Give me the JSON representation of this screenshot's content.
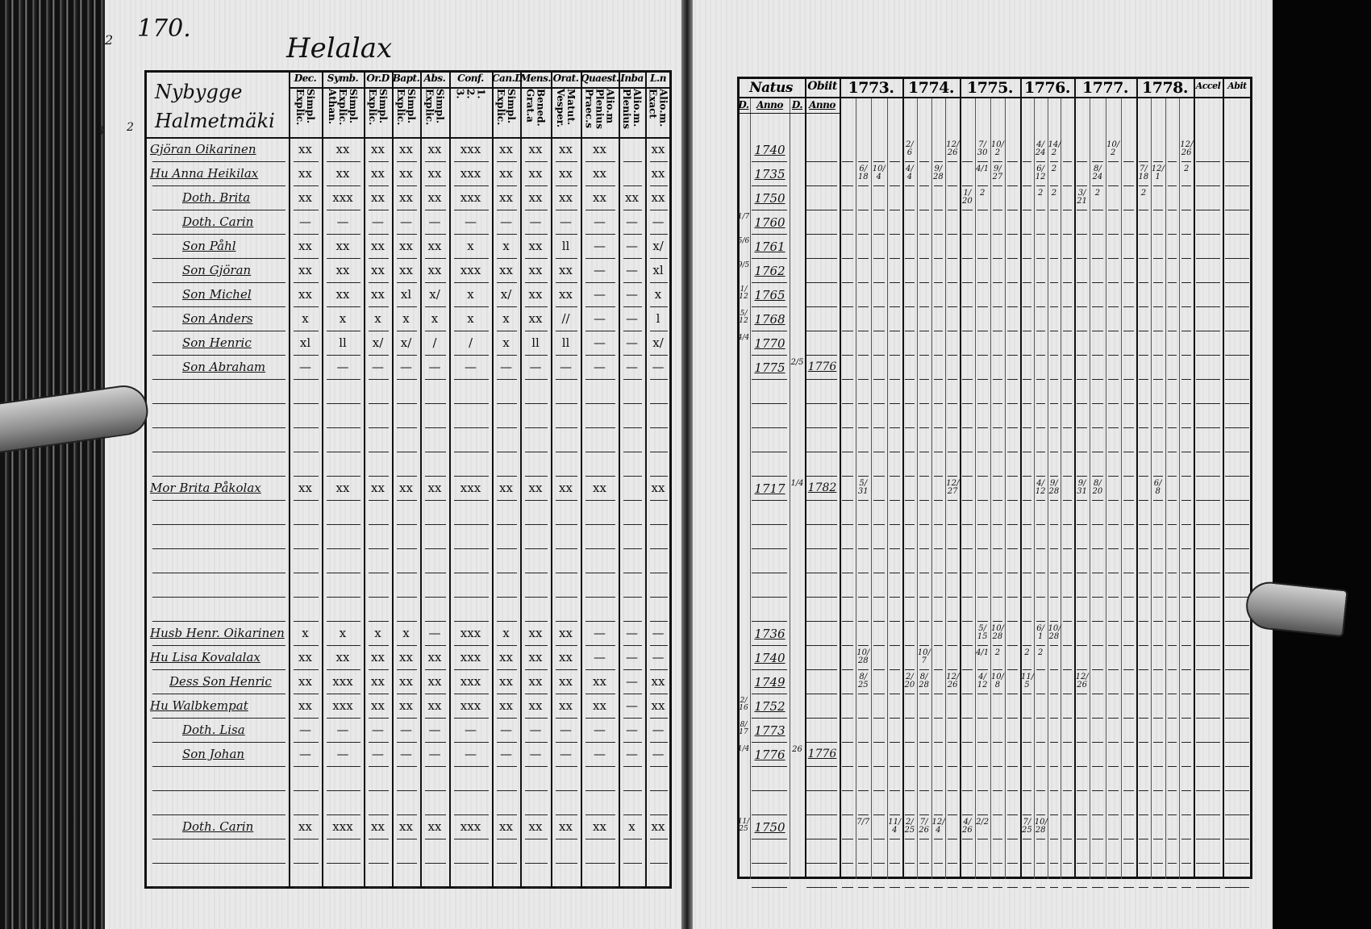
{
  "left_page": {
    "page_number": "170.",
    "village": "Helalax",
    "margin_marks": [
      "2",
      "3",
      "2"
    ],
    "homestead": {
      "line1": "Nybygge",
      "line2": "Halmetmäki"
    },
    "columns": [
      {
        "top": "Dec.",
        "sub": [
          "Explic.",
          "Simpl."
        ]
      },
      {
        "top": "Symb.",
        "sub": [
          "Athan.",
          "Explic.",
          "Simpl."
        ]
      },
      {
        "top": "Or.D",
        "sub": [
          "Explic.",
          "Simpl."
        ]
      },
      {
        "top": "Bapt.",
        "sub": [
          "Explic.",
          "Simpl."
        ]
      },
      {
        "top": "Abs.",
        "sub": [
          "Explic.",
          "Simpl."
        ]
      },
      {
        "top": "Conf.",
        "sub": [
          "3.",
          "2.",
          "1."
        ]
      },
      {
        "top": "Can.D",
        "sub": [
          "Explic.",
          "Simpl."
        ]
      },
      {
        "top": "Mens.",
        "sub": [
          "Grat.a",
          "Bened."
        ]
      },
      {
        "top": "Orat.",
        "sub": [
          "Vesper.",
          "Matut."
        ]
      },
      {
        "top": "Quaest.",
        "sub": [
          "Praec.s",
          "Plenius",
          "Alio.m"
        ]
      },
      {
        "top": "Inba",
        "sub": [
          "Plenius",
          "Alio.m."
        ]
      },
      {
        "top": "L.n",
        "sub": [
          "Exact",
          "Alio.m."
        ]
      }
    ]
  },
  "right_page": {
    "headers": {
      "natus": "Natus",
      "obiit": "Obiit",
      "accel": "Accel",
      "abit": "Abit",
      "sub": [
        "D.",
        "Anno",
        "D.",
        "Anno"
      ]
    },
    "years": [
      "1773.",
      "1774.",
      "1775.",
      "1776.",
      "1777.",
      "1778."
    ]
  },
  "persons": [
    {
      "name": "Gjöran Oikarinen",
      "marks": [
        "xx",
        "xx",
        "xx",
        "xx",
        "xx",
        "xxx",
        "xx",
        "xx",
        "xx",
        "xx",
        "",
        "xx"
      ],
      "natus_d": "",
      "natus_anno": "1740",
      "obiit_d": "",
      "obiit_anno": "",
      "years": [
        [
          "",
          "",
          "",
          ""
        ],
        [
          "2/6",
          "",
          "",
          "12/26"
        ],
        [
          "",
          "7/30",
          "10/2",
          ""
        ],
        [
          "",
          "4/24",
          "14/2",
          ""
        ],
        [
          "",
          "",
          "10/2",
          ""
        ],
        [
          "",
          "",
          "",
          "12/26"
        ]
      ]
    },
    {
      "name": "Hu Anna Heikilax",
      "marks": [
        "xx",
        "xx",
        "xx",
        "xx",
        "xx",
        "xxx",
        "xx",
        "xx",
        "xx",
        "xx",
        "",
        "xx"
      ],
      "natus_d": "",
      "natus_anno": "1735",
      "obiit_d": "",
      "obiit_anno": "",
      "years": [
        [
          "",
          "6/18",
          "10/4",
          ""
        ],
        [
          "4/4",
          "",
          "9/28",
          ""
        ],
        [
          "",
          "4/1",
          "9/27",
          ""
        ],
        [
          "",
          "6/12",
          "2",
          ""
        ],
        [
          "",
          "8/24",
          "",
          ""
        ],
        [
          "7/18",
          "12/1",
          "",
          "2"
        ]
      ]
    },
    {
      "name": "Doth. Brita",
      "marks": [
        "xx",
        "xxx",
        "xx",
        "xx",
        "xx",
        "xxx",
        "xx",
        "xx",
        "xx",
        "xx",
        "xx",
        "xx"
      ],
      "natus_d": "",
      "natus_anno": "1750",
      "obiit_d": "",
      "obiit_anno": "",
      "years": [
        [
          "",
          "",
          "",
          ""
        ],
        [
          "",
          "",
          "",
          ""
        ],
        [
          "1/20",
          "2",
          "",
          ""
        ],
        [
          "",
          "2",
          "2",
          ""
        ],
        [
          "3/21",
          "2",
          "",
          ""
        ],
        [
          "2",
          "",
          "",
          ""
        ]
      ]
    },
    {
      "name": "Doth. Carin",
      "marks": [
        "—",
        "—",
        "—",
        "—",
        "—",
        "—",
        "—",
        "—",
        "—",
        "—",
        "—",
        "—"
      ],
      "natus_d": "1/7",
      "natus_anno": "1760",
      "obiit_d": "",
      "obiit_anno": "",
      "years": []
    },
    {
      "name": "Son Påhl",
      "marks": [
        "xx",
        "xx",
        "xx",
        "xx",
        "xx",
        "x",
        "x",
        "xx",
        "ll",
        "—",
        "—",
        "x/"
      ],
      "natus_d": "5/6",
      "natus_anno": "1761",
      "obiit_d": "",
      "obiit_anno": "",
      "years": []
    },
    {
      "name": "Son Gjöran",
      "marks": [
        "xx",
        "xx",
        "xx",
        "xx",
        "xx",
        "xxx",
        "xx",
        "xx",
        "xx",
        "—",
        "—",
        "xl"
      ],
      "natus_d": "9/5",
      "natus_anno": "1762",
      "obiit_d": "",
      "obiit_anno": "",
      "years": []
    },
    {
      "name": "Son Michel",
      "marks": [
        "xx",
        "xx",
        "xx",
        "xl",
        "x/",
        "x",
        "x/",
        "xx",
        "xx",
        "—",
        "—",
        "x"
      ],
      "natus_d": "1/12",
      "natus_anno": "1765",
      "obiit_d": "",
      "obiit_anno": "",
      "years": []
    },
    {
      "name": "Son Anders",
      "marks": [
        "x",
        "x",
        "x",
        "x",
        "x",
        "x",
        "x",
        "xx",
        "//",
        "—",
        "—",
        "l"
      ],
      "natus_d": "5/12",
      "natus_anno": "1768",
      "obiit_d": "",
      "obiit_anno": "",
      "years": []
    },
    {
      "name": "Son Henric",
      "marks": [
        "xl",
        "ll",
        "x/",
        "x/",
        "/",
        "/",
        "x",
        "ll",
        "ll",
        "—",
        "—",
        "x/"
      ],
      "natus_d": "4/4",
      "natus_anno": "1770",
      "obiit_d": "",
      "obiit_anno": "",
      "years": []
    },
    {
      "name": "Son Abraham",
      "marks": [
        "—",
        "—",
        "—",
        "—",
        "—",
        "—",
        "—",
        "—",
        "—",
        "—",
        "—",
        "—"
      ],
      "natus_d": "",
      "natus_anno": "1775",
      "obiit_d": "2/5",
      "obiit_anno": "1776",
      "years": []
    },
    {
      "name": "Mor Brita Påkolax",
      "marks": [
        "xx",
        "xx",
        "xx",
        "xx",
        "xx",
        "xxx",
        "xx",
        "xx",
        "xx",
        "xx",
        "",
        "xx"
      ],
      "natus_d": "",
      "natus_anno": "1717",
      "obiit_d": "1/4",
      "obiit_anno": "1782",
      "years": [
        [
          "",
          "5/31",
          "",
          ""
        ],
        [
          "",
          "",
          "",
          "12/27"
        ],
        [
          "",
          "",
          "",
          ""
        ],
        [
          "",
          "4/12",
          "9/28",
          ""
        ],
        [
          "9/31",
          "8/20",
          "",
          ""
        ],
        [
          "",
          "6/8",
          "",
          ""
        ]
      ]
    },
    {
      "name": "Husb Henr. Oikarinen",
      "marks": [
        "x",
        "x",
        "x",
        "x",
        "—",
        "xxx",
        "x",
        "xx",
        "xx",
        "—",
        "—",
        "—"
      ],
      "natus_d": "",
      "natus_anno": "1736",
      "obiit_d": "",
      "obiit_anno": "",
      "years": [
        [
          "",
          "",
          "",
          ""
        ],
        [
          "",
          "",
          "",
          ""
        ],
        [
          "",
          "5/15",
          "10/28",
          ""
        ],
        [
          "",
          "6/1",
          "10/28",
          ""
        ],
        [
          "",
          "",
          "",
          ""
        ],
        [
          "",
          "",
          "",
          ""
        ]
      ]
    },
    {
      "name": "Hu Lisa Kovalalax",
      "marks": [
        "xx",
        "xx",
        "xx",
        "xx",
        "xx",
        "xxx",
        "xx",
        "xx",
        "xx",
        "—",
        "—",
        "—"
      ],
      "natus_d": "",
      "natus_anno": "1740",
      "obiit_d": "",
      "obiit_anno": "",
      "years": [
        [
          "",
          "10/28",
          "",
          ""
        ],
        [
          "",
          "10/7",
          "",
          ""
        ],
        [
          "",
          "4/1",
          "2",
          ""
        ],
        [
          "2",
          "2",
          "",
          ""
        ],
        [
          "",
          "",
          "",
          ""
        ],
        [
          "",
          "",
          "",
          ""
        ]
      ]
    },
    {
      "name": "Dess Son Henric",
      "marks": [
        "xx",
        "xxx",
        "xx",
        "xx",
        "xx",
        "xxx",
        "xx",
        "xx",
        "xx",
        "xx",
        "—",
        "xx"
      ],
      "natus_d": "",
      "natus_anno": "1749",
      "obiit_d": "",
      "obiit_anno": "",
      "years": [
        [
          "",
          "8/25",
          "",
          ""
        ],
        [
          "2/20",
          "8/28",
          "",
          "12/26"
        ],
        [
          "",
          "4/12",
          "10/8",
          ""
        ],
        [
          "11/5",
          "",
          "",
          ""
        ],
        [
          "12/26",
          "",
          "",
          ""
        ],
        [
          "",
          "",
          "",
          ""
        ]
      ]
    },
    {
      "name": "Hu Walbkempat",
      "marks": [
        "xx",
        "xxx",
        "xx",
        "xx",
        "xx",
        "xxx",
        "xx",
        "xx",
        "xx",
        "xx",
        "—",
        "xx"
      ],
      "natus_d": "2/16",
      "natus_anno": "1752",
      "obiit_d": "",
      "obiit_anno": "",
      "years": []
    },
    {
      "name": "Doth. Lisa",
      "marks": [
        "—",
        "—",
        "—",
        "—",
        "—",
        "—",
        "—",
        "—",
        "—",
        "—",
        "—",
        "—"
      ],
      "natus_d": "8/17",
      "natus_anno": "1773",
      "obiit_d": "",
      "obiit_anno": "",
      "years": []
    },
    {
      "name": "Son Johan",
      "marks": [
        "—",
        "—",
        "—",
        "—",
        "—",
        "—",
        "—",
        "—",
        "—",
        "—",
        "—",
        "—"
      ],
      "natus_d": "1/4",
      "natus_anno": "1776",
      "obiit_d": "26",
      "obiit_anno": "1776",
      "years": []
    },
    {
      "name": "Doth. Carin",
      "marks": [
        "xx",
        "xxx",
        "xx",
        "xx",
        "xx",
        "xxx",
        "xx",
        "xx",
        "xx",
        "xx",
        "x",
        "xx"
      ],
      "natus_d": "11/25",
      "natus_anno": "1750",
      "obiit_d": "",
      "obiit_anno": "",
      "years": [
        [
          "",
          "7/7",
          "",
          "11/4"
        ],
        [
          "2/25",
          "7/26",
          "12/4",
          ""
        ],
        [
          "4/26",
          "2/2",
          "",
          ""
        ],
        [
          "7/25",
          "10/28",
          "",
          ""
        ],
        [
          "",
          "",
          "",
          ""
        ],
        [
          "",
          "",
          "",
          ""
        ]
      ]
    }
  ]
}
